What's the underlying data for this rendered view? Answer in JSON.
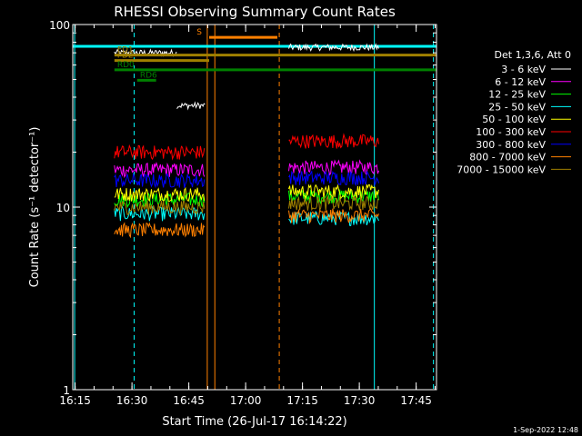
{
  "chart_data": {
    "type": "line",
    "title": "RHESSI Observing Summary Count Rates",
    "xlabel": "Start Time (26-Jul-17 16:14:22)",
    "ylabel": "Count Rate (s⁻¹ detector⁻¹)",
    "yscale": "log",
    "ylim": [
      1,
      100
    ],
    "xlim_minutes": [
      0,
      96
    ],
    "x_ticks": [
      {
        "label": "16:15",
        "minute": 0.63
      },
      {
        "label": "16:30",
        "minute": 15.63
      },
      {
        "label": "16:45",
        "minute": 30.63
      },
      {
        "label": "17:00",
        "minute": 45.63
      },
      {
        "label": "17:15",
        "minute": 60.63
      },
      {
        "label": "17:30",
        "minute": 75.63
      },
      {
        "label": "17:45",
        "minute": 90.63
      }
    ],
    "y_ticks": [
      {
        "label": "1",
        "value": 1
      },
      {
        "label": "10",
        "value": 10
      },
      {
        "label": "100",
        "value": 100
      }
    ],
    "legend": {
      "header": "Det 1,3,6, Att 0",
      "placement": "right"
    },
    "series": [
      {
        "name": "3 - 6 keV",
        "color": "#ffffff",
        "segments": [
          {
            "from": 11,
            "to": 27.5,
            "value": 70
          },
          {
            "from": 27.5,
            "to": 35,
            "value": 36
          },
          {
            "from": 57,
            "to": 81,
            "value": 75
          }
        ]
      },
      {
        "name": "6 - 12 keV",
        "color": "#ff00ff",
        "segments": [
          {
            "from": 11,
            "to": 35,
            "value": 16
          },
          {
            "from": 57,
            "to": 81,
            "value": 16.5
          }
        ]
      },
      {
        "name": "12 - 25 keV",
        "color": "#00ff00",
        "segments": [
          {
            "from": 11,
            "to": 35,
            "value": 11
          },
          {
            "from": 57,
            "to": 81,
            "value": 11.5
          }
        ]
      },
      {
        "name": "25 - 50 keV",
        "color": "#00ffff",
        "segments": [
          {
            "from": 11,
            "to": 35,
            "value": 9.2
          },
          {
            "from": 57,
            "to": 81,
            "value": 8.7
          }
        ]
      },
      {
        "name": "50 - 100 keV",
        "color": "#ffff00",
        "segments": [
          {
            "from": 11,
            "to": 35,
            "value": 11.8
          },
          {
            "from": 57,
            "to": 81,
            "value": 12.2
          }
        ]
      },
      {
        "name": "100 - 300 keV",
        "color": "#ff0000",
        "segments": [
          {
            "from": 11,
            "to": 35,
            "value": 20
          },
          {
            "from": 57,
            "to": 81,
            "value": 23
          }
        ]
      },
      {
        "name": "300 - 800 keV",
        "color": "#0000ff",
        "segments": [
          {
            "from": 11,
            "to": 35,
            "value": 14
          },
          {
            "from": 57,
            "to": 81,
            "value": 14.5
          }
        ]
      },
      {
        "name": "800 - 7000 keV",
        "color": "#ff8000",
        "segments": [
          {
            "from": 11,
            "to": 35,
            "value": 7.5
          },
          {
            "from": 57,
            "to": 81,
            "value": 9
          }
        ]
      },
      {
        "name": "7000 - 15000 keV",
        "color": "#a08000",
        "segments": [
          {
            "from": 11,
            "to": 35,
            "value": 10
          },
          {
            "from": 57,
            "to": 81,
            "value": 10.5
          }
        ]
      }
    ],
    "flag_bars": [
      {
        "label": "S",
        "color": "#ff8000",
        "from": 36,
        "to": 54,
        "value": 85
      },
      {
        "label": "FD1",
        "color": "#a08000",
        "from": 11,
        "to": 96,
        "value": 68
      },
      {
        "label": "FD2",
        "color": "#a08000",
        "from": 11,
        "to": 36,
        "value": 63.5
      },
      {
        "label": "RD0",
        "color": "#008000",
        "from": 11,
        "to": 96,
        "value": 56.5
      },
      {
        "label": "RD6",
        "color": "#008000",
        "from": 17,
        "to": 22,
        "value": 49.5
      }
    ],
    "vlines": [
      {
        "minute": 0.5,
        "color": "#00ffff",
        "style": "solid"
      },
      {
        "minute": 16.2,
        "color": "#00ffff",
        "style": "dashed"
      },
      {
        "minute": 35.5,
        "color": "#ff8000",
        "style": "solid"
      },
      {
        "minute": 37.5,
        "color": "#ff8000",
        "style": "solid"
      },
      {
        "minute": 54.5,
        "color": "#ff8000",
        "style": "dashed"
      },
      {
        "minute": 79.6,
        "color": "#00ffff",
        "style": "solid"
      },
      {
        "minute": 95.2,
        "color": "#00ffff",
        "style": "dashed"
      }
    ],
    "cyan_bar": {
      "value": 76,
      "from": 0,
      "to": 96,
      "color": "#00ffff"
    },
    "timestamp": "1-Sep-2022 12:48"
  }
}
